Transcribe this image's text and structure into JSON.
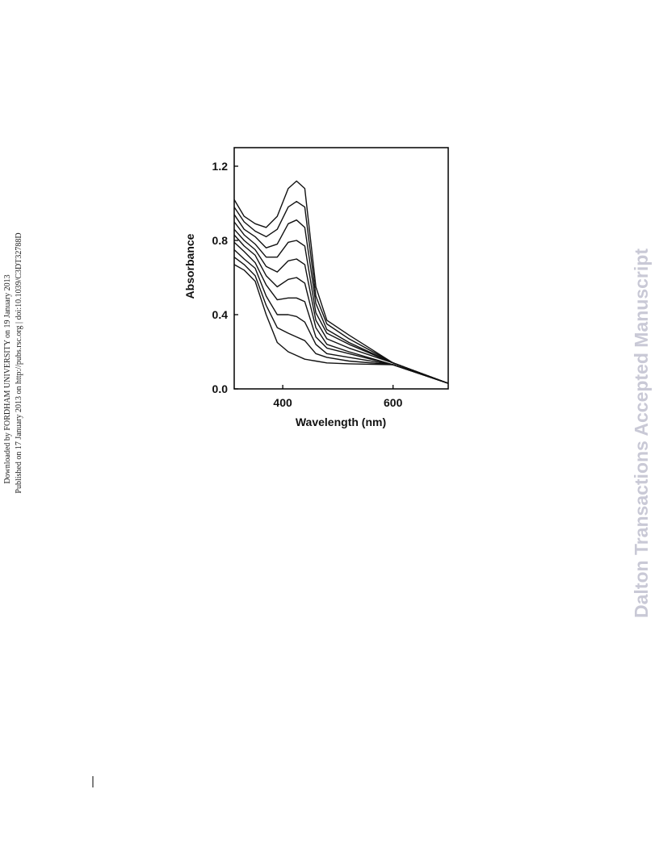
{
  "sidebar": {
    "downloaded": "Downloaded by FORDHAM UNIVERSITY on 19 January 2013",
    "published": "Published on 17 January 2013 on http://pubs.rsc.org | doi:10.1039/C3DT32788D"
  },
  "watermark": "Dalton Transactions Accepted Manuscript",
  "chart_data": {
    "type": "line",
    "x_label": "Wavelength (nm)",
    "y_label": "Absorbance",
    "x": [
      312,
      330,
      350,
      370,
      390,
      410,
      425,
      440,
      460,
      480,
      520,
      600,
      700
    ],
    "series": [
      {
        "color": "#111111",
        "values": [
          0.67,
          0.64,
          0.58,
          0.4,
          0.25,
          0.2,
          0.18,
          0.16,
          0.15,
          0.14,
          0.135,
          0.13,
          0.03
        ]
      },
      {
        "color": "#111111",
        "values": [
          0.71,
          0.67,
          0.61,
          0.45,
          0.33,
          0.3,
          0.28,
          0.26,
          0.19,
          0.17,
          0.15,
          0.13,
          0.03
        ]
      },
      {
        "color": "#111111",
        "values": [
          0.75,
          0.7,
          0.65,
          0.5,
          0.4,
          0.4,
          0.39,
          0.36,
          0.24,
          0.19,
          0.17,
          0.13,
          0.03
        ]
      },
      {
        "color": "#111111",
        "values": [
          0.79,
          0.74,
          0.68,
          0.56,
          0.48,
          0.49,
          0.49,
          0.47,
          0.28,
          0.22,
          0.19,
          0.13,
          0.03
        ]
      },
      {
        "color": "#111111",
        "values": [
          0.83,
          0.77,
          0.72,
          0.61,
          0.55,
          0.59,
          0.6,
          0.57,
          0.33,
          0.24,
          0.2,
          0.13,
          0.03
        ]
      },
      {
        "color": "#111111",
        "values": [
          0.86,
          0.8,
          0.75,
          0.66,
          0.63,
          0.69,
          0.7,
          0.67,
          0.37,
          0.27,
          0.22,
          0.14,
          0.03
        ]
      },
      {
        "color": "#111111",
        "values": [
          0.9,
          0.83,
          0.78,
          0.71,
          0.71,
          0.79,
          0.8,
          0.77,
          0.41,
          0.3,
          0.24,
          0.14,
          0.03
        ]
      },
      {
        "color": "#111111",
        "values": [
          0.94,
          0.86,
          0.82,
          0.76,
          0.78,
          0.89,
          0.91,
          0.87,
          0.46,
          0.32,
          0.25,
          0.14,
          0.03
        ]
      },
      {
        "color": "#111111",
        "values": [
          0.98,
          0.9,
          0.85,
          0.82,
          0.86,
          0.98,
          1.01,
          0.98,
          0.5,
          0.35,
          0.27,
          0.14,
          0.03
        ]
      },
      {
        "color": "#111111",
        "values": [
          1.02,
          0.93,
          0.89,
          0.87,
          0.93,
          1.08,
          1.12,
          1.08,
          0.55,
          0.37,
          0.29,
          0.14,
          0.03
        ]
      }
    ],
    "xlim": [
      312,
      700
    ],
    "ylim": [
      0,
      1.3
    ],
    "xticks": [
      400,
      600
    ],
    "yticks": [
      {
        "value": 0,
        "label": "0.0"
      },
      0.4,
      0.8,
      1.2
    ]
  }
}
